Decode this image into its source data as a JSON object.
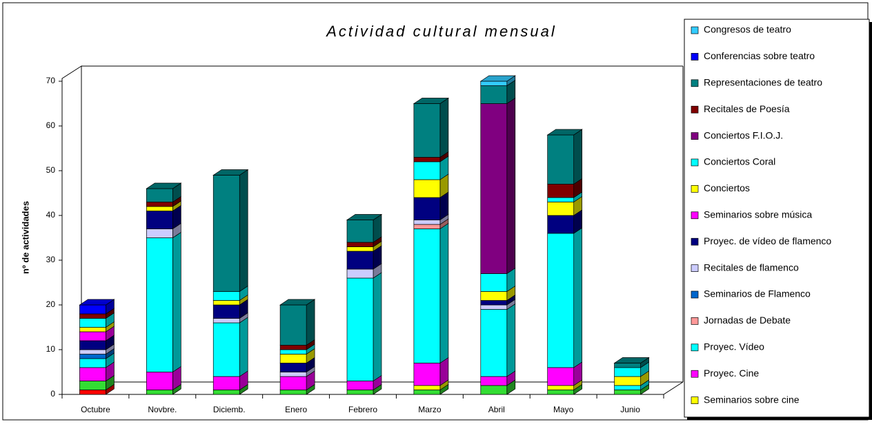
{
  "chart_data": {
    "type": "bar3d_stacked",
    "title": "Actividad cultural mensual",
    "y_label": "nº de actividades",
    "categories": [
      "Octubre",
      "Novbre.",
      "Diciemb.",
      "Enero",
      "Febrero",
      "Marzo",
      "Abril",
      "Mayo",
      "Junio"
    ],
    "ylim": [
      0,
      70
    ],
    "yticks": [
      0,
      10,
      20,
      30,
      40,
      50,
      60,
      70
    ],
    "series": [
      {
        "color": "#ff0000",
        "values": [
          1,
          0,
          0,
          0,
          0,
          0,
          0,
          0,
          0
        ]
      },
      {
        "color": "#33dd33",
        "values": [
          2,
          1,
          1,
          1,
          1,
          1,
          2,
          1,
          1
        ]
      },
      {
        "name": "Seminarios sobre cine",
        "color": "#ffff00",
        "values": [
          0,
          0,
          0,
          0,
          0,
          1,
          0,
          1,
          0
        ]
      },
      {
        "name": "Proyec. Cine",
        "color": "#ff00ff",
        "values": [
          3,
          4,
          3,
          3,
          2,
          5,
          2,
          4,
          0
        ]
      },
      {
        "name": "Proyec. Vídeo",
        "color": "#00ffff",
        "values": [
          2,
          30,
          12,
          0,
          23,
          30,
          15,
          30,
          1
        ]
      },
      {
        "name": "Jornadas de Debate",
        "color": "#ff9999",
        "values": [
          0,
          0,
          0,
          0,
          0,
          1,
          0,
          0,
          0
        ]
      },
      {
        "name": "Seminarios de Flamenco",
        "color": "#0066cc",
        "values": [
          1,
          0,
          0,
          0,
          0,
          0,
          0,
          0,
          0
        ]
      },
      {
        "name": "Recitales de flamenco",
        "color": "#ccccff",
        "values": [
          1,
          2,
          1,
          1,
          2,
          1,
          1,
          0,
          0
        ]
      },
      {
        "name": "Proyec. de vídeo de flamenco",
        "color": "#000080",
        "values": [
          2,
          4,
          3,
          2,
          4,
          5,
          1,
          4,
          0
        ]
      },
      {
        "name": "Seminarios sobre música",
        "color": "#ff00ff",
        "values": [
          2,
          0,
          0,
          0,
          0,
          0,
          0,
          0,
          0
        ]
      },
      {
        "name": "Conciertos",
        "color": "#ffff00",
        "values": [
          1,
          1,
          1,
          2,
          1,
          4,
          2,
          3,
          2
        ]
      },
      {
        "name": "Conciertos Coral",
        "color": "#00ffff",
        "values": [
          2,
          0,
          2,
          1,
          0,
          4,
          4,
          1,
          2
        ]
      },
      {
        "name": "Conciertos F.I.O.J.",
        "color": "#800080",
        "values": [
          0,
          0,
          0,
          0,
          0,
          0,
          38,
          0,
          0
        ]
      },
      {
        "name": "Recitales de Poesía",
        "color": "#800000",
        "values": [
          1,
          1,
          0,
          1,
          1,
          1,
          0,
          3,
          0
        ]
      },
      {
        "name": "Representaciones de teatro",
        "color": "#008080",
        "values": [
          0,
          3,
          26,
          9,
          5,
          12,
          4,
          11,
          1
        ]
      },
      {
        "name": "Conferencias sobre teatro",
        "color": "#0000ff",
        "values": [
          2,
          0,
          0,
          0,
          0,
          0,
          0,
          0,
          0
        ]
      },
      {
        "name": "Congresos de teatro",
        "color": "#33ccff",
        "values": [
          0,
          0,
          0,
          0,
          0,
          0,
          1,
          0,
          0
        ]
      }
    ]
  }
}
